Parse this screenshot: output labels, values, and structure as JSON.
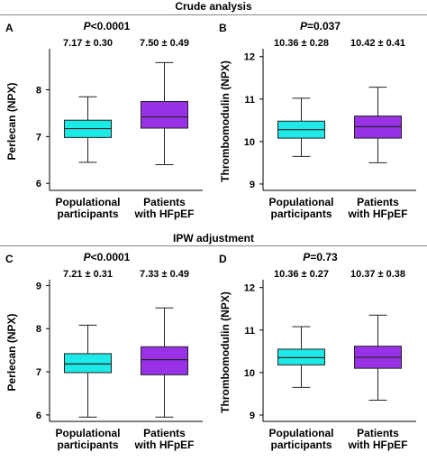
{
  "sections": [
    {
      "title": "Crude analysis"
    },
    {
      "title": "IPW adjustment"
    }
  ],
  "colors": {
    "populational": "#1de9e6",
    "hfpef": "#9932e6",
    "line": "#222222"
  },
  "chart_data": [
    {
      "type": "box",
      "panel": "A",
      "p_prefix": "P",
      "p_value": "<0.0001",
      "ylabel": "Perlecan (NPX)",
      "ylim": [
        5.85,
        8.8
      ],
      "yticks": [
        6,
        7,
        8
      ],
      "categories": [
        "Populational participants",
        "Patients with HFpEF"
      ],
      "category_lines": [
        [
          "Populational",
          "participants"
        ],
        [
          "Patients",
          "with HFpEF"
        ]
      ],
      "stats": [
        "7.17 ± 0.30",
        "7.50 ± 0.49"
      ],
      "boxes": [
        {
          "min": 6.45,
          "q1": 6.98,
          "median": 7.17,
          "q3": 7.35,
          "max": 7.85
        },
        {
          "min": 6.4,
          "q1": 7.18,
          "median": 7.42,
          "q3": 7.75,
          "max": 8.58
        }
      ]
    },
    {
      "type": "box",
      "panel": "B",
      "p_prefix": "P",
      "p_value": "=0.037",
      "ylabel": "Thrombomodulin (NPX)",
      "ylim": [
        8.85,
        12.1
      ],
      "yticks": [
        9,
        10,
        11,
        12
      ],
      "categories": [
        "Populational participants",
        "Patients with HFpEF"
      ],
      "category_lines": [
        [
          "Populational",
          "participants"
        ],
        [
          "Patients",
          "with HFpEF"
        ]
      ],
      "stats": [
        "10.36 ± 0.28",
        "10.42 ± 0.41"
      ],
      "boxes": [
        {
          "min": 9.65,
          "q1": 10.08,
          "median": 10.28,
          "q3": 10.48,
          "max": 11.02
        },
        {
          "min": 9.5,
          "q1": 10.08,
          "median": 10.35,
          "q3": 10.6,
          "max": 11.28
        }
      ]
    },
    {
      "type": "box",
      "panel": "C",
      "p_prefix": "P",
      "p_value": "<0.0001",
      "ylabel": "Perlecan (NPX)",
      "ylim": [
        5.85,
        9.05
      ],
      "yticks": [
        6,
        7,
        8,
        9
      ],
      "categories": [
        "Populational participants",
        "Patients with HFpEF"
      ],
      "category_lines": [
        [
          "Populational",
          "participants"
        ],
        [
          "Patients",
          "with HFpEF"
        ]
      ],
      "stats": [
        "7.21 ± 0.31",
        "7.33 ± 0.49"
      ],
      "boxes": [
        {
          "min": 5.95,
          "q1": 6.98,
          "median": 7.18,
          "q3": 7.42,
          "max": 8.08
        },
        {
          "min": 5.95,
          "q1": 6.93,
          "median": 7.28,
          "q3": 7.58,
          "max": 8.48
        }
      ]
    },
    {
      "type": "box",
      "panel": "D",
      "p_prefix": "P",
      "p_value": "=0.73",
      "ylabel": "Thrombomodulin (NPX)",
      "ylim": [
        8.85,
        12.1
      ],
      "yticks": [
        9,
        10,
        11,
        12
      ],
      "categories": [
        "Populational participants",
        "Patients with HFpEF"
      ],
      "category_lines": [
        [
          "Populational",
          "participants"
        ],
        [
          "Patients",
          "with HFpEF"
        ]
      ],
      "stats": [
        "10.36 ± 0.27",
        "10.37 ± 0.38"
      ],
      "boxes": [
        {
          "min": 9.65,
          "q1": 10.18,
          "median": 10.35,
          "q3": 10.55,
          "max": 11.08
        },
        {
          "min": 9.35,
          "q1": 10.1,
          "median": 10.36,
          "q3": 10.62,
          "max": 11.35
        }
      ]
    }
  ]
}
